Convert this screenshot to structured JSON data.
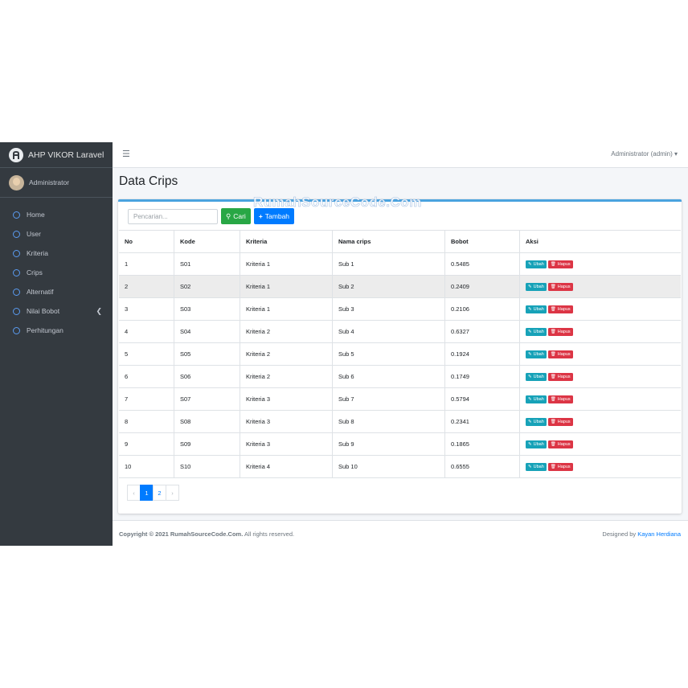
{
  "app": {
    "brand": "AHP VIKOR Laravel",
    "user": "Administrator"
  },
  "sidebar": {
    "items": [
      {
        "label": "Home"
      },
      {
        "label": "User"
      },
      {
        "label": "Kriteria"
      },
      {
        "label": "Crips"
      },
      {
        "label": "Alternatif"
      },
      {
        "label": "Nilai Bobot",
        "has_children": true
      },
      {
        "label": "Perhitungan"
      }
    ]
  },
  "navbar": {
    "menu_icon": "hamburger-icon",
    "account": "Administrator (admin) ▾"
  },
  "page": {
    "title": "Data Crips"
  },
  "search": {
    "placeholder": "Pencarian...",
    "button": "Cari",
    "add_button": "Tambah"
  },
  "table": {
    "headers": [
      "No",
      "Kode",
      "Kriteria",
      "Nama crips",
      "Bobot",
      "Aksi"
    ],
    "rows": [
      [
        "1",
        "S01",
        "Kriteria 1",
        "Sub 1",
        "0.5485"
      ],
      [
        "2",
        "S02",
        "Kriteria 1",
        "Sub 2",
        "0.2409"
      ],
      [
        "3",
        "S03",
        "Kriteria 1",
        "Sub 3",
        "0.2106"
      ],
      [
        "4",
        "S04",
        "Kriteria 2",
        "Sub 4",
        "0.6327"
      ],
      [
        "5",
        "S05",
        "Kriteria 2",
        "Sub 5",
        "0.1924"
      ],
      [
        "6",
        "S06",
        "Kriteria 2",
        "Sub 6",
        "0.1749"
      ],
      [
        "7",
        "S07",
        "Kriteria 3",
        "Sub 7",
        "0.5794"
      ],
      [
        "8",
        "S08",
        "Kriteria 3",
        "Sub 8",
        "0.2341"
      ],
      [
        "9",
        "S09",
        "Kriteria 3",
        "Sub 9",
        "0.1865"
      ],
      [
        "10",
        "S10",
        "Kriteria 4",
        "Sub 10",
        "0.6555"
      ]
    ],
    "highlighted_row": 1,
    "action_edit": "Ubah",
    "action_delete": "Hapus"
  },
  "pagination": {
    "prev": "‹",
    "pages": [
      "1",
      "2"
    ],
    "active": "1",
    "next": "›"
  },
  "footer": {
    "copyright": "Copyright © 2021 RumahSourceCode.Com.",
    "rights": " All rights reserved.",
    "designed_by": "Designed by ",
    "author": "Kayan Herdiana"
  },
  "watermark": "RumahSourceCode.Com",
  "colors": {
    "sidebar": "#343a40",
    "primary": "#007bff",
    "success": "#28a745",
    "info": "#17a2b8",
    "danger": "#dc3545"
  }
}
